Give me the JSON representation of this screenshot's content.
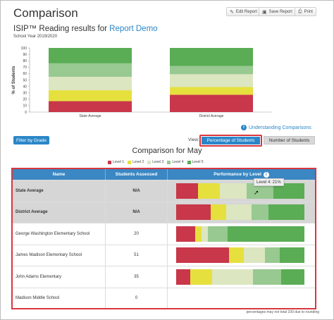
{
  "header": {
    "title": "Comparison",
    "buttons": [
      {
        "label": "Edit Report",
        "icon": "pencil-icon"
      },
      {
        "label": "Save Report",
        "icon": "save-icon"
      },
      {
        "label": "Print",
        "icon": "print-icon"
      }
    ]
  },
  "subtitle": {
    "prefix": "ISIP™ Reading results for",
    "link": "Report Demo"
  },
  "school_year": "School Year 2019/2020",
  "colors": {
    "level1": "#c8374a",
    "level2": "#e6e03e",
    "level3": "#dce6c0",
    "level4": "#97c990",
    "level5": "#5aac55",
    "accent": "#2a86c8",
    "highlight": "#d9363e"
  },
  "chart_data": {
    "type": "bar",
    "stacked": true,
    "categories": [
      "State Average",
      "District Average"
    ],
    "series": [
      {
        "name": "Level 1",
        "values": [
          17,
          27
        ]
      },
      {
        "name": "Level 2",
        "values": [
          17,
          12
        ]
      },
      {
        "name": "Level 3",
        "values": [
          21,
          20
        ]
      },
      {
        "name": "Level 4",
        "values": [
          21,
          13
        ]
      },
      {
        "name": "Level 5",
        "values": [
          24,
          28
        ]
      }
    ],
    "ylabel": "% of Students",
    "ylim": [
      0,
      100
    ],
    "yticks": [
      "0",
      "10",
      "20",
      "30",
      "40",
      "50",
      "60",
      "70",
      "80",
      "90",
      "100"
    ],
    "grid": false
  },
  "understand_link": "Understanding Comparisons",
  "filter_button": "Filter by Grade",
  "view": {
    "label": "View:",
    "options": [
      "Percentage of Students",
      "Number of Students"
    ],
    "selected": "Percentage of Students"
  },
  "comparison_title": "Comparison for May",
  "legend": [
    "Level 1",
    "Level 2",
    "Level 3",
    "Level 4",
    "Level 5"
  ],
  "table": {
    "headers": [
      "Name",
      "Students Assessed",
      "Performance by Level"
    ],
    "rows": [
      {
        "name": "State Average",
        "assessed": "N/A",
        "summary": true,
        "levels": [
          17,
          17,
          21,
          21,
          24
        ]
      },
      {
        "name": "District Average",
        "assessed": "N/A",
        "summary": true,
        "levels": [
          27,
          12,
          20,
          13,
          28
        ]
      },
      {
        "name": "George Washington Elementary School",
        "assessed": "20",
        "summary": false,
        "levels": [
          15,
          5,
          5,
          15,
          60
        ]
      },
      {
        "name": "James Madison Elementary School",
        "assessed": "51",
        "summary": false,
        "levels": [
          41,
          12,
          16,
          12,
          19
        ]
      },
      {
        "name": "John Adams Elementary",
        "assessed": "35",
        "summary": false,
        "levels": [
          11,
          17,
          32,
          22,
          18
        ]
      },
      {
        "name": "Madison Middle School",
        "assessed": "0",
        "summary": false,
        "levels": [
          0,
          0,
          0,
          0,
          0
        ]
      }
    ]
  },
  "tooltip": "Level 4: 21%",
  "footnote": "percentages may not total 100 due to rounding"
}
